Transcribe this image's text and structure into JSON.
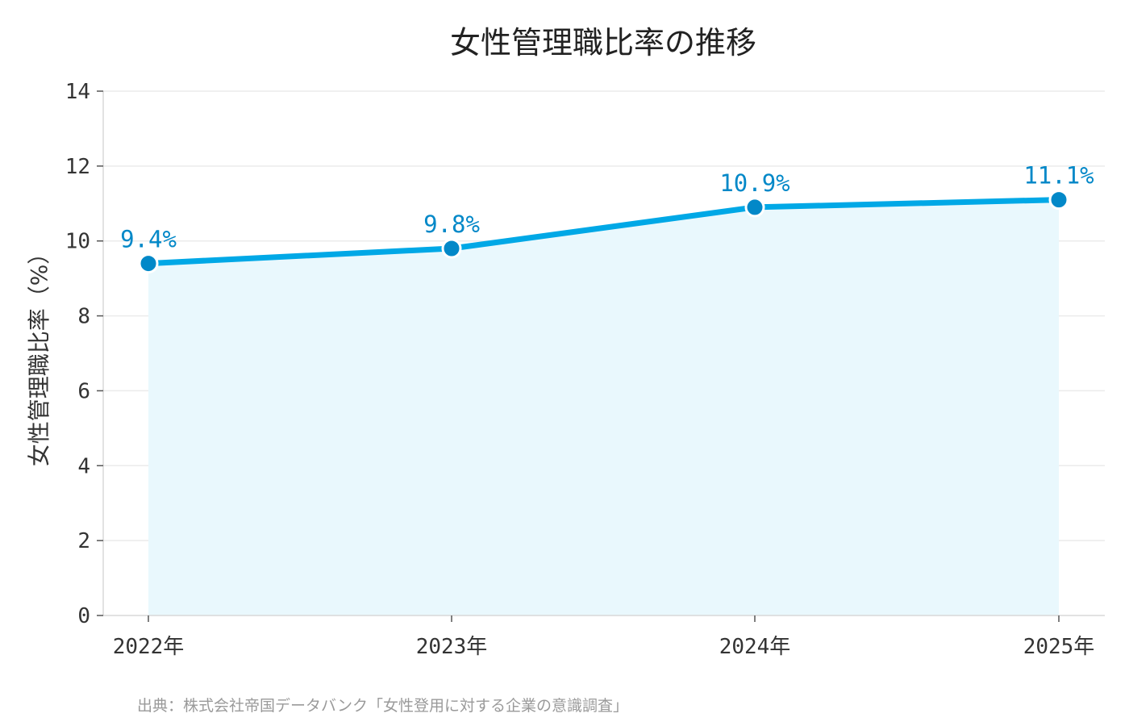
{
  "chart_data": {
    "type": "line",
    "title": "女性管理職比率の推移",
    "xlabel": "",
    "ylabel": "女性管理職比率（%）",
    "categories": [
      "2022年",
      "2023年",
      "2024年",
      "2025年"
    ],
    "series": [
      {
        "values": [
          9.4,
          9.8,
          10.9,
          11.1
        ],
        "labels": [
          "9.4%",
          "9.8%",
          "10.9%",
          "11.1%"
        ],
        "color": "#00a8e6",
        "marker_color": "#0288c8",
        "fill_color": "#e9f8fd"
      }
    ],
    "ylim": [
      0,
      14
    ],
    "yticks": [
      0,
      2,
      4,
      6,
      8,
      10,
      12,
      14
    ],
    "grid": true,
    "area_fill": true
  },
  "source_note": "出典：株式会社帝国データバンク「女性登用に対する企業の意識調査」"
}
